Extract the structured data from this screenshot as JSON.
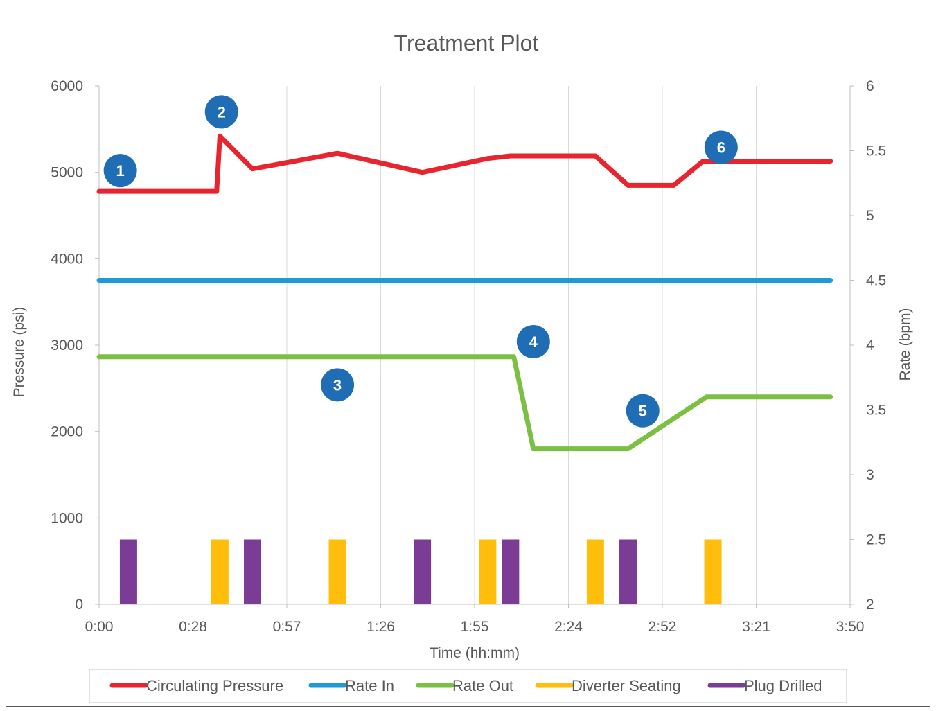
{
  "chart_data": {
    "type": "line",
    "title": "Treatment Plot",
    "xlabel": "Time (hh:mm)",
    "ylabel_left": "Pressure (psi)",
    "ylabel_right": "Rate (bpm)",
    "x_ticks": [
      "0:00",
      "0:28",
      "0:57",
      "1:26",
      "1:55",
      "2:24",
      "2:52",
      "3:21",
      "3:50"
    ],
    "xlim_minutes": [
      0,
      230
    ],
    "ylim_left": [
      0,
      6000
    ],
    "y_ticks_left": [
      "0",
      "1000",
      "2000",
      "3000",
      "4000",
      "5000",
      "6000"
    ],
    "ylim_right": [
      2,
      6
    ],
    "y_ticks_right": [
      "2",
      "2.5",
      "3",
      "3.5",
      "4",
      "4.5",
      "5",
      "5.5",
      "6"
    ],
    "grid": "vertical",
    "legend_position": "bottom",
    "series": [
      {
        "name": "Circulating Pressure",
        "axis": "left",
        "color": "#e8252f",
        "x_minutes": [
          0,
          36,
          37,
          47,
          73,
          99,
          119,
          126,
          152,
          162,
          171,
          176,
          185,
          224
        ],
        "values": [
          4780,
          4780,
          5420,
          5040,
          5220,
          5000,
          5160,
          5190,
          5190,
          4850,
          4850,
          4850,
          5130,
          5130
        ]
      },
      {
        "name": "Rate In",
        "axis": "right",
        "color": "#1f9ad6",
        "x_minutes": [
          0,
          224
        ],
        "values": [
          4.5,
          4.5
        ]
      },
      {
        "name": "Rate Out",
        "axis": "right",
        "color": "#7bc043",
        "x_minutes": [
          0,
          127,
          133,
          162,
          186,
          224
        ],
        "values": [
          3.91,
          3.91,
          3.2,
          3.2,
          3.6,
          3.6
        ]
      },
      {
        "name": "Diverter Seating",
        "axis": "left",
        "type": "event-bars",
        "color": "#ffbe0b",
        "x_minutes": [
          37,
          73,
          119,
          152,
          188
        ],
        "values": [
          750,
          750,
          750,
          750,
          750
        ]
      },
      {
        "name": "Plug Drilled",
        "axis": "left",
        "type": "event-bars",
        "color": "#7b3c96",
        "x_minutes": [
          9,
          47,
          99,
          126,
          162
        ],
        "values": [
          750,
          750,
          750,
          750,
          750
        ]
      }
    ],
    "annotations": [
      {
        "label": "1",
        "x_minutes": 6.5,
        "y_left": 5020
      },
      {
        "label": "2",
        "x_minutes": 37.5,
        "y_left": 5700
      },
      {
        "label": "3",
        "x_minutes": 73,
        "y_left": 2540
      },
      {
        "label": "4",
        "x_minutes": 133,
        "y_left": 3040
      },
      {
        "label": "5",
        "x_minutes": 166.5,
        "y_left": 2240
      },
      {
        "label": "6",
        "x_minutes": 190.5,
        "y_left": 5290
      }
    ],
    "annotation_color": "#1f6eb5"
  }
}
